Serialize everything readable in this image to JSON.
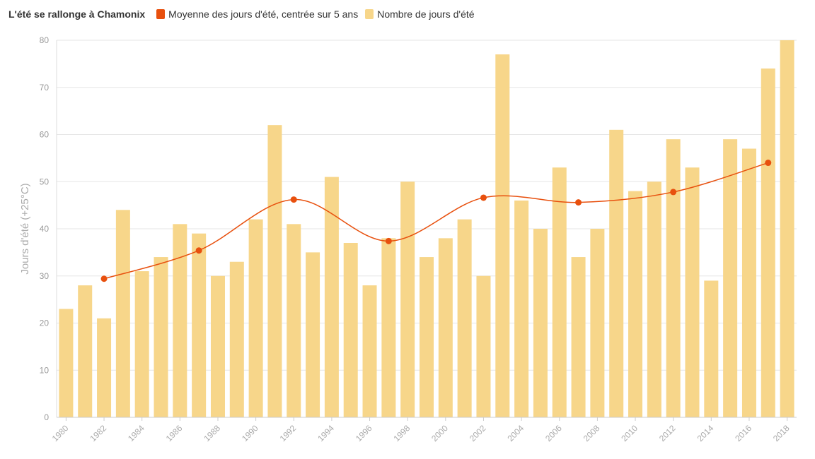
{
  "chart_data": {
    "type": "bar",
    "title": "L'été se rallonge à Chamonix",
    "ylabel": "Jours d'été (+25°C)",
    "xlabel": "",
    "ylim": [
      0,
      80
    ],
    "yticks": [
      0,
      10,
      20,
      30,
      40,
      50,
      60,
      70,
      80
    ],
    "grid": true,
    "legend_position": "top-left",
    "categories": [
      1980,
      1981,
      1982,
      1983,
      1984,
      1985,
      1986,
      1987,
      1988,
      1989,
      1990,
      1991,
      1992,
      1993,
      1994,
      1995,
      1996,
      1997,
      1998,
      1999,
      2000,
      2001,
      2002,
      2003,
      2004,
      2005,
      2006,
      2007,
      2008,
      2009,
      2010,
      2011,
      2012,
      2013,
      2014,
      2015,
      2016,
      2017,
      2018
    ],
    "xtick_labels": [
      "1980",
      "1982",
      "1984",
      "1986",
      "1988",
      "1990",
      "1992",
      "1994",
      "1996",
      "1998",
      "2000",
      "2002",
      "2004",
      "2006",
      "2008",
      "2010",
      "2012",
      "2014",
      "2016",
      "2018"
    ],
    "series": [
      {
        "name": "Nombre de jours d'été",
        "type": "bar",
        "color": "#f7d68a",
        "values": [
          23,
          28,
          21,
          44,
          31,
          34,
          41,
          39,
          30,
          33,
          42,
          62,
          41,
          35,
          51,
          37,
          28,
          38,
          50,
          34,
          38,
          42,
          30,
          77,
          46,
          40,
          53,
          34,
          40,
          61,
          48,
          50,
          59,
          53,
          29,
          59,
          57,
          74,
          80
        ]
      },
      {
        "name": "Moyenne des jours d'été, centrée sur 5 ans",
        "type": "line",
        "color": "#e8500e",
        "x": [
          1982,
          1987,
          1992,
          1997,
          2002,
          2007,
          2012,
          2017
        ],
        "values": [
          29.4,
          35.4,
          46.2,
          37.4,
          46.6,
          45.6,
          47.8,
          54
        ]
      }
    ]
  }
}
